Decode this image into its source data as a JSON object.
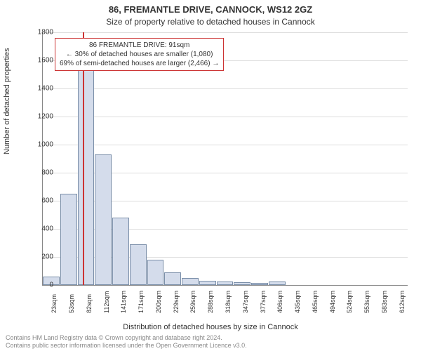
{
  "title": "86, FREMANTLE DRIVE, CANNOCK, WS12 2GZ",
  "subtitle": "Size of property relative to detached houses in Cannock",
  "ylabel": "Number of detached properties",
  "xlabel": "Distribution of detached houses by size in Cannock",
  "annotation": {
    "line1": "86 FREMANTLE DRIVE: 91sqm",
    "line2": "← 30% of detached houses are smaller (1,080)",
    "line3": "69% of semi-detached houses are larger (2,466) →"
  },
  "footer": {
    "line1": "Contains HM Land Registry data © Crown copyright and database right 2024.",
    "line2": "Contains public sector information licensed under the Open Government Licence v3.0."
  },
  "chart": {
    "type": "histogram",
    "ylim": [
      0,
      1800
    ],
    "ytick_step": 200,
    "background_color": "#ffffff",
    "grid_color": "#dddddd",
    "axis_color": "#888888",
    "bar_fill": "#d4dceb",
    "bar_stroke": "#7a8ea8",
    "reference_line_color": "#cc3333",
    "reference_x_label": "91sqm",
    "x_labels": [
      "23sqm",
      "53sqm",
      "82sqm",
      "112sqm",
      "141sqm",
      "171sqm",
      "200sqm",
      "229sqm",
      "259sqm",
      "288sqm",
      "318sqm",
      "347sqm",
      "377sqm",
      "406sqm",
      "435sqm",
      "465sqm",
      "494sqm",
      "524sqm",
      "553sqm",
      "583sqm",
      "612sqm"
    ],
    "values": [
      60,
      650,
      1620,
      930,
      480,
      290,
      180,
      90,
      50,
      30,
      25,
      20,
      15,
      25,
      0,
      0,
      0,
      0,
      0,
      0,
      0
    ],
    "reference_index": 2.3,
    "title_fontsize": 13,
    "label_fontsize": 11,
    "tick_fontsize": 10
  }
}
